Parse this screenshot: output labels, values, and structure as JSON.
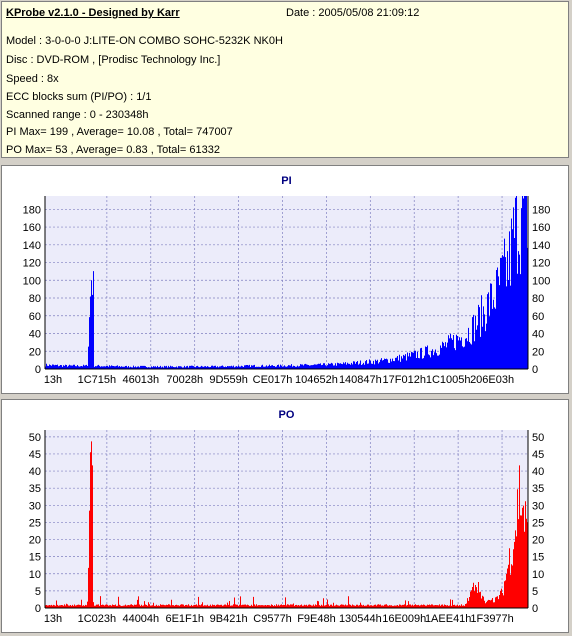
{
  "header": {
    "title": "KProbe v2.1.0 - Designed by Karr",
    "date": "Date : 2005/05/08 21:09:12",
    "model": "Model : 3-0-0-0 J:LITE-ON COMBO SOHC-5232K NK0H",
    "disc": "Disc : DVD-ROM ,  [Prodisc Technology Inc.]",
    "speed": "Speed : 8x",
    "ecc": "ECC blocks sum (PI/PO) : 1/1",
    "range": "Scanned range : 0 - 230348h",
    "pi_stats": "PI Max= 199 , Average= 10.08 , Total= 747007",
    "po_stats": "PO Max= 53 , Average= 0.83 , Total= 61332"
  },
  "chart_data": [
    {
      "type": "bar",
      "title": "PI",
      "color": "#0000ff",
      "ylim": [
        0,
        195
      ],
      "yticks": [
        0,
        20,
        40,
        60,
        80,
        100,
        120,
        140,
        160,
        180
      ],
      "xticklabels": [
        "13h",
        "1C715h",
        "46013h",
        "70028h",
        "9D559h",
        "CE017h",
        "104652h",
        "140847h",
        "17F012h",
        "1C1005h",
        "206E03h"
      ],
      "xlim": [
        0,
        230348
      ],
      "grid": true,
      "series": [
        {
          "values_profile": [
            [
              0,
              5
            ],
            [
              10000,
              4
            ],
            [
              20000,
              4
            ],
            [
              22000,
              122
            ],
            [
              22500,
              93
            ],
            [
              23000,
              4
            ],
            [
              40000,
              3
            ],
            [
              60000,
              3
            ],
            [
              80000,
              3
            ],
            [
              100000,
              4
            ],
            [
              110000,
              4
            ],
            [
              130000,
              5
            ],
            [
              140000,
              6
            ],
            [
              150000,
              8
            ],
            [
              160000,
              10
            ],
            [
              170000,
              14
            ],
            [
              180000,
              20
            ],
            [
              190000,
              28
            ],
            [
              200000,
              42
            ],
            [
              205000,
              55
            ],
            [
              210000,
              75
            ],
            [
              215000,
              95
            ],
            [
              218000,
              115
            ],
            [
              221000,
              130
            ],
            [
              223000,
              160
            ],
            [
              225000,
              185
            ],
            [
              227000,
              190
            ],
            [
              229000,
              199
            ],
            [
              230348,
              195
            ]
          ]
        }
      ]
    },
    {
      "type": "bar",
      "title": "PO",
      "color": "#ff0000",
      "ylim": [
        0,
        52
      ],
      "yticks": [
        0,
        5,
        10,
        15,
        20,
        25,
        30,
        35,
        40,
        45,
        50
      ],
      "xticklabels": [
        "13h",
        "1C023h",
        "44004h",
        "6E1F1h",
        "9B421h",
        "C9577h",
        "F9E48h",
        "130544h",
        "16E009h",
        "1AEE41h",
        "1F3977h"
      ],
      "xlim": [
        0,
        230348
      ],
      "grid": true,
      "series": [
        {
          "values_profile": [
            [
              0,
              1
            ],
            [
              10000,
              1
            ],
            [
              20000,
              1
            ],
            [
              22000,
              50
            ],
            [
              22600,
              1
            ],
            [
              40000,
              1
            ],
            [
              60000,
              1
            ],
            [
              80000,
              1
            ],
            [
              100000,
              1
            ],
            [
              120000,
              1
            ],
            [
              140000,
              1
            ],
            [
              160000,
              1
            ],
            [
              180000,
              1
            ],
            [
              200000,
              1
            ],
            [
              205000,
              8
            ],
            [
              210000,
              2
            ],
            [
              215000,
              3
            ],
            [
              218000,
              5
            ],
            [
              221000,
              15
            ],
            [
              224000,
              25
            ],
            [
              226000,
              38
            ],
            [
              228000,
              32
            ],
            [
              230348,
              20
            ]
          ]
        }
      ]
    }
  ]
}
